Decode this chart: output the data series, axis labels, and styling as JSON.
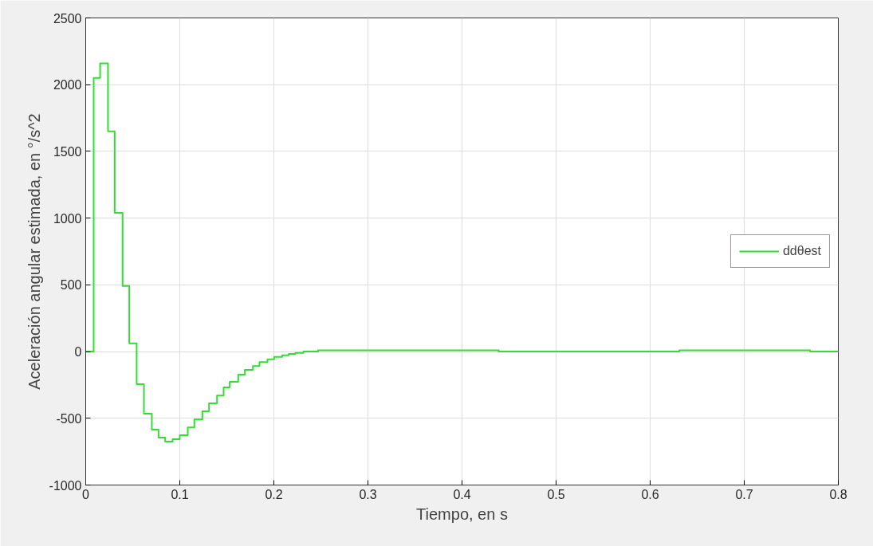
{
  "chart_data": {
    "type": "step",
    "xlabel": "Tiempo, en s",
    "ylabel": "Aceleración angular estimada, en °/s^2",
    "x": [
      0,
      0.0085,
      0.0153,
      0.0237,
      0.0308,
      0.0392,
      0.0463,
      0.0542,
      0.0619,
      0.0703,
      0.0774,
      0.0845,
      0.0924,
      0.1,
      0.1085,
      0.1155,
      0.124,
      0.1311,
      0.1396,
      0.1466,
      0.1531,
      0.1621,
      0.1692,
      0.1777,
      0.1847,
      0.1932,
      0.2003,
      0.2088,
      0.2158,
      0.2229,
      0.2314,
      0.247,
      0.439,
      0.631,
      0.77,
      0.8
    ],
    "series": [
      {
        "name": "ddθest",
        "color": "#33dd33",
        "values": [
          0,
          2050,
          2160,
          1650,
          1040,
          492,
          62,
          -245,
          -466,
          -585,
          -645,
          -675,
          -657,
          -627,
          -568,
          -508,
          -448,
          -388,
          -329,
          -269,
          -227,
          -173,
          -137,
          -108,
          -78,
          -58,
          -40,
          -28,
          -18,
          -10,
          0,
          10,
          0,
          10,
          0,
          0
        ]
      }
    ],
    "xlim": [
      0,
      0.8
    ],
    "xticks": [
      0,
      0.1,
      0.2,
      0.3,
      0.4,
      0.5,
      0.6,
      0.7,
      0.8
    ],
    "ylim": [
      -1000,
      2500
    ],
    "yticks": [
      -1000,
      -500,
      0,
      500,
      1000,
      1500,
      2000,
      2500
    ],
    "grid": true,
    "legend": "right",
    "line_style": "solid",
    "marker": "none"
  }
}
